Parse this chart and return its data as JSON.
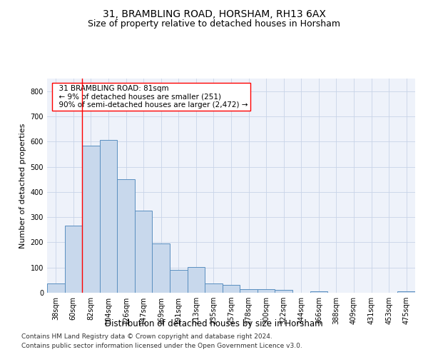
{
  "title1": "31, BRAMBLING ROAD, HORSHAM, RH13 6AX",
  "title2": "Size of property relative to detached houses in Horsham",
  "xlabel": "Distribution of detached houses by size in Horsham",
  "ylabel": "Number of detached properties",
  "categories": [
    "38sqm",
    "60sqm",
    "82sqm",
    "104sqm",
    "126sqm",
    "147sqm",
    "169sqm",
    "191sqm",
    "213sqm",
    "235sqm",
    "257sqm",
    "278sqm",
    "300sqm",
    "322sqm",
    "344sqm",
    "366sqm",
    "388sqm",
    "409sqm",
    "431sqm",
    "453sqm",
    "475sqm"
  ],
  "values": [
    37,
    265,
    585,
    605,
    450,
    327,
    195,
    90,
    103,
    37,
    32,
    15,
    15,
    10,
    0,
    7,
    0,
    0,
    0,
    0,
    7
  ],
  "bar_color": "#c8d8ec",
  "bar_edge_color": "#5a8fc0",
  "annotation_box_text": "  31 BRAMBLING ROAD: 81sqm\n  ← 9% of detached houses are smaller (251)\n  90% of semi-detached houses are larger (2,472) →",
  "red_line_x": 1.5,
  "ylim": [
    0,
    850
  ],
  "yticks": [
    0,
    100,
    200,
    300,
    400,
    500,
    600,
    700,
    800
  ],
  "grid_color": "#c8d4e8",
  "background_color": "#eef2fa",
  "footer_line1": "Contains HM Land Registry data © Crown copyright and database right 2024.",
  "footer_line2": "Contains public sector information licensed under the Open Government Licence v3.0.",
  "title1_fontsize": 10,
  "title2_fontsize": 9,
  "xlabel_fontsize": 8.5,
  "ylabel_fontsize": 8,
  "tick_fontsize": 7,
  "footer_fontsize": 6.5,
  "annotation_fontsize": 7.5
}
